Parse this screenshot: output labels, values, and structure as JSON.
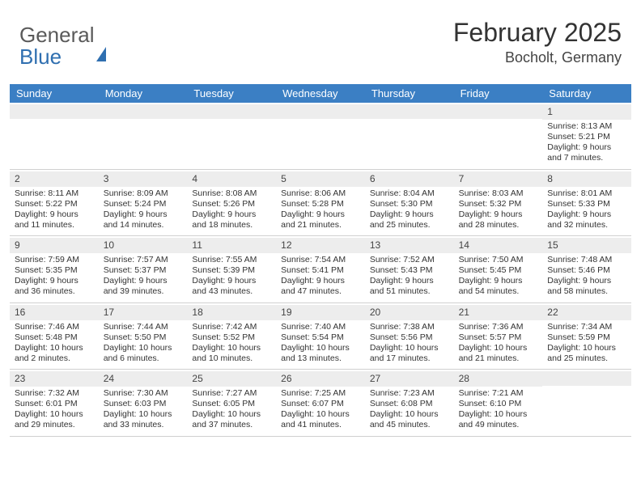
{
  "logo": {
    "line1": "General",
    "line2": "Blue"
  },
  "header": {
    "month_year": "February 2025",
    "location": "Bocholt, Germany"
  },
  "colors": {
    "header_bar": "#3b7fc4",
    "daynum_bg": "#ededed",
    "text": "#333333",
    "logo_gray": "#5a5a5a",
    "logo_blue": "#2f6fb0",
    "row_border": "#d0d0d0"
  },
  "typography": {
    "month_fontsize": 32,
    "location_fontsize": 18,
    "dayhead_fontsize": 13,
    "cell_fontsize": 10.5,
    "daynum_fontsize": 12
  },
  "daysOfWeek": [
    "Sunday",
    "Monday",
    "Tuesday",
    "Wednesday",
    "Thursday",
    "Friday",
    "Saturday"
  ],
  "weeks": [
    [
      {
        "n": "",
        "lines": []
      },
      {
        "n": "",
        "lines": []
      },
      {
        "n": "",
        "lines": []
      },
      {
        "n": "",
        "lines": []
      },
      {
        "n": "",
        "lines": []
      },
      {
        "n": "",
        "lines": []
      },
      {
        "n": "1",
        "lines": [
          "Sunrise: 8:13 AM",
          "Sunset: 5:21 PM",
          "Daylight: 9 hours and 7 minutes."
        ]
      }
    ],
    [
      {
        "n": "2",
        "lines": [
          "Sunrise: 8:11 AM",
          "Sunset: 5:22 PM",
          "Daylight: 9 hours and 11 minutes."
        ]
      },
      {
        "n": "3",
        "lines": [
          "Sunrise: 8:09 AM",
          "Sunset: 5:24 PM",
          "Daylight: 9 hours and 14 minutes."
        ]
      },
      {
        "n": "4",
        "lines": [
          "Sunrise: 8:08 AM",
          "Sunset: 5:26 PM",
          "Daylight: 9 hours and 18 minutes."
        ]
      },
      {
        "n": "5",
        "lines": [
          "Sunrise: 8:06 AM",
          "Sunset: 5:28 PM",
          "Daylight: 9 hours and 21 minutes."
        ]
      },
      {
        "n": "6",
        "lines": [
          "Sunrise: 8:04 AM",
          "Sunset: 5:30 PM",
          "Daylight: 9 hours and 25 minutes."
        ]
      },
      {
        "n": "7",
        "lines": [
          "Sunrise: 8:03 AM",
          "Sunset: 5:32 PM",
          "Daylight: 9 hours and 28 minutes."
        ]
      },
      {
        "n": "8",
        "lines": [
          "Sunrise: 8:01 AM",
          "Sunset: 5:33 PM",
          "Daylight: 9 hours and 32 minutes."
        ]
      }
    ],
    [
      {
        "n": "9",
        "lines": [
          "Sunrise: 7:59 AM",
          "Sunset: 5:35 PM",
          "Daylight: 9 hours and 36 minutes."
        ]
      },
      {
        "n": "10",
        "lines": [
          "Sunrise: 7:57 AM",
          "Sunset: 5:37 PM",
          "Daylight: 9 hours and 39 minutes."
        ]
      },
      {
        "n": "11",
        "lines": [
          "Sunrise: 7:55 AM",
          "Sunset: 5:39 PM",
          "Daylight: 9 hours and 43 minutes."
        ]
      },
      {
        "n": "12",
        "lines": [
          "Sunrise: 7:54 AM",
          "Sunset: 5:41 PM",
          "Daylight: 9 hours and 47 minutes."
        ]
      },
      {
        "n": "13",
        "lines": [
          "Sunrise: 7:52 AM",
          "Sunset: 5:43 PM",
          "Daylight: 9 hours and 51 minutes."
        ]
      },
      {
        "n": "14",
        "lines": [
          "Sunrise: 7:50 AM",
          "Sunset: 5:45 PM",
          "Daylight: 9 hours and 54 minutes."
        ]
      },
      {
        "n": "15",
        "lines": [
          "Sunrise: 7:48 AM",
          "Sunset: 5:46 PM",
          "Daylight: 9 hours and 58 minutes."
        ]
      }
    ],
    [
      {
        "n": "16",
        "lines": [
          "Sunrise: 7:46 AM",
          "Sunset: 5:48 PM",
          "Daylight: 10 hours and 2 minutes."
        ]
      },
      {
        "n": "17",
        "lines": [
          "Sunrise: 7:44 AM",
          "Sunset: 5:50 PM",
          "Daylight: 10 hours and 6 minutes."
        ]
      },
      {
        "n": "18",
        "lines": [
          "Sunrise: 7:42 AM",
          "Sunset: 5:52 PM",
          "Daylight: 10 hours and 10 minutes."
        ]
      },
      {
        "n": "19",
        "lines": [
          "Sunrise: 7:40 AM",
          "Sunset: 5:54 PM",
          "Daylight: 10 hours and 13 minutes."
        ]
      },
      {
        "n": "20",
        "lines": [
          "Sunrise: 7:38 AM",
          "Sunset: 5:56 PM",
          "Daylight: 10 hours and 17 minutes."
        ]
      },
      {
        "n": "21",
        "lines": [
          "Sunrise: 7:36 AM",
          "Sunset: 5:57 PM",
          "Daylight: 10 hours and 21 minutes."
        ]
      },
      {
        "n": "22",
        "lines": [
          "Sunrise: 7:34 AM",
          "Sunset: 5:59 PM",
          "Daylight: 10 hours and 25 minutes."
        ]
      }
    ],
    [
      {
        "n": "23",
        "lines": [
          "Sunrise: 7:32 AM",
          "Sunset: 6:01 PM",
          "Daylight: 10 hours and 29 minutes."
        ]
      },
      {
        "n": "24",
        "lines": [
          "Sunrise: 7:30 AM",
          "Sunset: 6:03 PM",
          "Daylight: 10 hours and 33 minutes."
        ]
      },
      {
        "n": "25",
        "lines": [
          "Sunrise: 7:27 AM",
          "Sunset: 6:05 PM",
          "Daylight: 10 hours and 37 minutes."
        ]
      },
      {
        "n": "26",
        "lines": [
          "Sunrise: 7:25 AM",
          "Sunset: 6:07 PM",
          "Daylight: 10 hours and 41 minutes."
        ]
      },
      {
        "n": "27",
        "lines": [
          "Sunrise: 7:23 AM",
          "Sunset: 6:08 PM",
          "Daylight: 10 hours and 45 minutes."
        ]
      },
      {
        "n": "28",
        "lines": [
          "Sunrise: 7:21 AM",
          "Sunset: 6:10 PM",
          "Daylight: 10 hours and 49 minutes."
        ]
      },
      {
        "n": "",
        "lines": []
      }
    ]
  ]
}
